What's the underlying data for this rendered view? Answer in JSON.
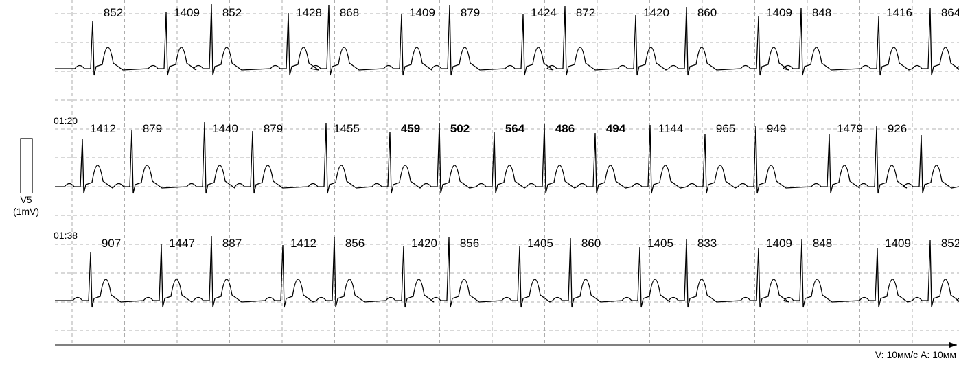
{
  "strips": [
    {
      "intervals": [
        "852",
        "1409",
        "852",
        "1428",
        "868",
        "1409",
        "879",
        "1424",
        "872",
        "1420",
        "860",
        "1409",
        "848",
        "1416",
        "864"
      ]
    },
    {
      "time": "01:20",
      "intervals": [
        "1412",
        "879",
        "1440",
        "879",
        "1455",
        "459",
        "502",
        "564",
        "486",
        "494",
        "1144",
        "965",
        "949",
        "1479",
        "926"
      ]
    },
    {
      "time": "01:38",
      "intervals": [
        "907",
        "1447",
        "887",
        "1412",
        "856",
        "1420",
        "856",
        "1405",
        "860",
        "1405",
        "833",
        "1409",
        "848",
        "1409",
        "852"
      ]
    }
  ],
  "calibration": {
    "lead": "V5",
    "amplitude": "(1mV)"
  },
  "footer": "V: 10мм/с  A: 10мм"
}
